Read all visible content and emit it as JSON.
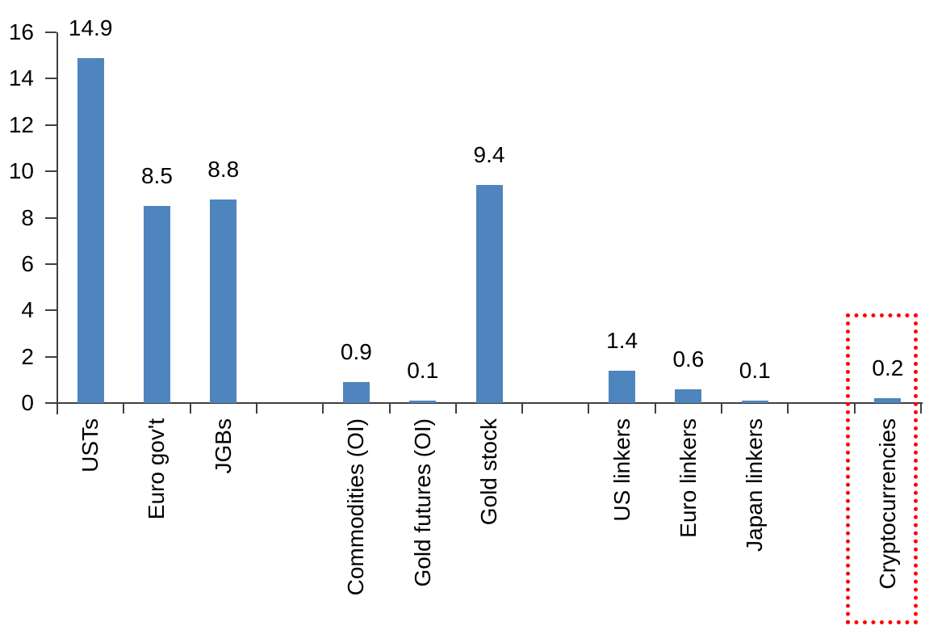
{
  "chart_data": {
    "type": "bar",
    "title": "",
    "xlabel": "",
    "ylabel": "",
    "categories": [
      "USTs",
      "Euro gov't",
      "JGBs",
      "Commodities (OI)",
      "Gold futures (OI)",
      "Gold stock",
      "US linkers",
      "Euro linkers",
      "Japan linkers",
      "Cryptocurrencies"
    ],
    "values": [
      14.9,
      8.5,
      8.8,
      0.9,
      0.1,
      9.4,
      1.4,
      0.6,
      0.1,
      0.2
    ],
    "value_labels": [
      "14.9",
      "8.5",
      "8.8",
      "0.9",
      "0.1",
      "9.4",
      "1.4",
      "0.6",
      "0.1",
      "0.2"
    ],
    "slot_indices": [
      0,
      1,
      2,
      4,
      5,
      6,
      8,
      9,
      10,
      12
    ],
    "num_slots": 13,
    "ylim": [
      0,
      16
    ],
    "yticks": [
      0,
      2,
      4,
      6,
      8,
      10,
      12,
      14,
      16
    ],
    "grid": "off",
    "legend": "none",
    "colors": {
      "bar": "#4E85BE",
      "axis": "#404040",
      "text": "#000000",
      "highlight": "#FF0000"
    },
    "highlight": {
      "category": "Cryptocurrencies",
      "style": "red-dotted-box"
    }
  }
}
